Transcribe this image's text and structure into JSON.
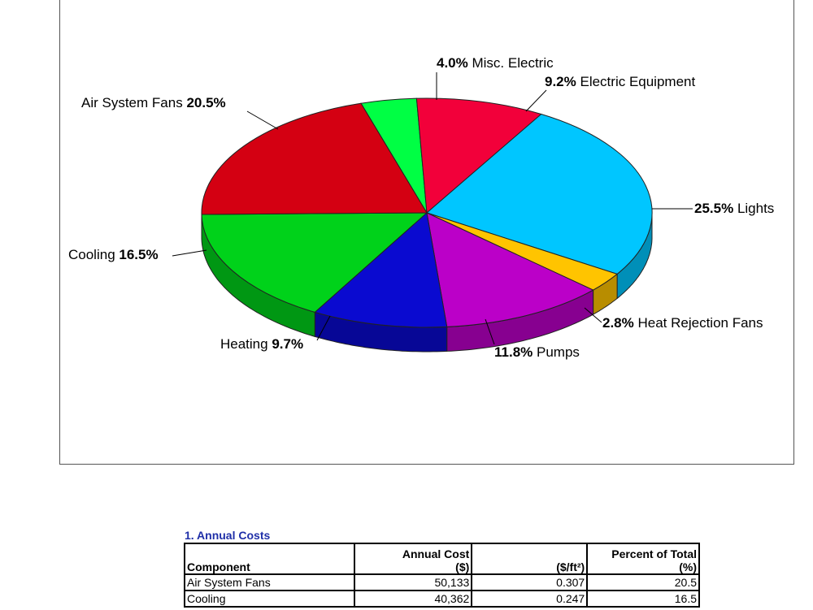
{
  "chart_data": {
    "type": "pie",
    "slices": [
      {
        "label": "Misc. Electric",
        "pct_text": "4.0%",
        "value": 4.0,
        "color": "#00ff44"
      },
      {
        "label": "Electric Equipment",
        "pct_text": "9.2%",
        "value": 9.2,
        "color": "#f2003a"
      },
      {
        "label": "Lights",
        "pct_text": "25.5%",
        "value": 25.5,
        "color": "#00c6ff"
      },
      {
        "label": "Heat Rejection Fans",
        "pct_text": "2.8%",
        "value": 2.8,
        "color": "#ffc400"
      },
      {
        "label": "Pumps",
        "pct_text": "11.8%",
        "value": 11.8,
        "color": "#bb00c8"
      },
      {
        "label": "Heating",
        "pct_text": "9.7%",
        "value": 9.7,
        "color": "#0a0ad0"
      },
      {
        "label": "Cooling",
        "pct_text": "16.5%",
        "value": 16.5,
        "color": "#00d21a"
      },
      {
        "label": "Air System Fans",
        "pct_text": "20.5%",
        "value": 20.5,
        "color": "#d40012"
      }
    ]
  },
  "table": {
    "title": "1. Annual Costs",
    "headers": {
      "component": "Component",
      "annual_cost_line1": "Annual Cost",
      "annual_cost_line2": "($)",
      "per_area": "($/ft²)",
      "percent_line1": "Percent of Total",
      "percent_line2": "(%)"
    },
    "rows": [
      {
        "component": "Air System Fans",
        "cost": "50,133",
        "per_area": "0.307",
        "percent": "20.5"
      },
      {
        "component": "Cooling",
        "cost": "40,362",
        "per_area": "0.247",
        "percent": "16.5"
      }
    ]
  }
}
